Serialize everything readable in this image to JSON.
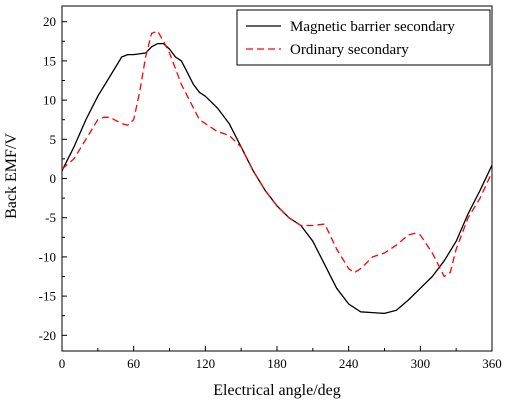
{
  "chart_data": {
    "type": "line",
    "title": "",
    "xlabel": "Electrical angle/deg",
    "ylabel": "Back EMF/V",
    "xlim": [
      0,
      360
    ],
    "ylim": [
      -22,
      22
    ],
    "xticks": [
      0,
      60,
      120,
      180,
      240,
      300,
      360
    ],
    "yticks": [
      -20,
      -15,
      -10,
      -5,
      0,
      5,
      10,
      15,
      20
    ],
    "grid": false,
    "legend_position": "top-right",
    "series": [
      {
        "name": "Magnetic barrier secondary",
        "color": "#000000",
        "dash": "solid",
        "x": [
          0,
          10,
          20,
          30,
          40,
          50,
          55,
          60,
          70,
          75,
          80,
          85,
          90,
          95,
          100,
          105,
          110,
          115,
          120,
          130,
          140,
          150,
          160,
          170,
          180,
          190,
          200,
          210,
          220,
          230,
          240,
          250,
          260,
          270,
          280,
          290,
          300,
          310,
          320,
          330,
          340,
          350,
          360
        ],
        "y": [
          1.0,
          4.0,
          7.5,
          10.5,
          13.0,
          15.5,
          15.8,
          15.8,
          16.0,
          16.8,
          17.2,
          17.2,
          16.5,
          15.5,
          15.0,
          13.5,
          12.0,
          11.0,
          10.5,
          9.0,
          7.0,
          4.0,
          1.0,
          -1.5,
          -3.5,
          -5.0,
          -6.0,
          -8.0,
          -11.0,
          -14.0,
          -16.0,
          -17.0,
          -17.1,
          -17.2,
          -16.8,
          -15.5,
          -14.0,
          -12.5,
          -10.5,
          -8.0,
          -4.5,
          -1.5,
          1.7
        ]
      },
      {
        "name": "Ordinary secondary",
        "color": "#ff0000",
        "dash": "dashed",
        "x": [
          0,
          10,
          20,
          30,
          35,
          40,
          50,
          55,
          60,
          65,
          70,
          75,
          80,
          85,
          90,
          95,
          100,
          105,
          110,
          115,
          120,
          130,
          140,
          150,
          160,
          170,
          180,
          190,
          200,
          210,
          220,
          230,
          240,
          245,
          250,
          260,
          270,
          280,
          290,
          295,
          300,
          310,
          320,
          325,
          330,
          340,
          350,
          360
        ],
        "y": [
          1.2,
          2.5,
          5.0,
          7.5,
          7.8,
          7.8,
          7.0,
          6.8,
          7.5,
          11.0,
          15.5,
          18.5,
          18.8,
          17.5,
          16.0,
          14.0,
          12.0,
          10.5,
          9.0,
          7.5,
          7.0,
          6.0,
          5.5,
          4.0,
          1.0,
          -1.5,
          -3.5,
          -5.0,
          -6.0,
          -6.0,
          -5.8,
          -9.0,
          -11.5,
          -12.0,
          -11.5,
          -10.0,
          -9.5,
          -8.5,
          -7.2,
          -7.0,
          -7.2,
          -9.5,
          -12.5,
          -12.0,
          -9.0,
          -5.0,
          -2.5,
          0.8
        ]
      }
    ]
  }
}
